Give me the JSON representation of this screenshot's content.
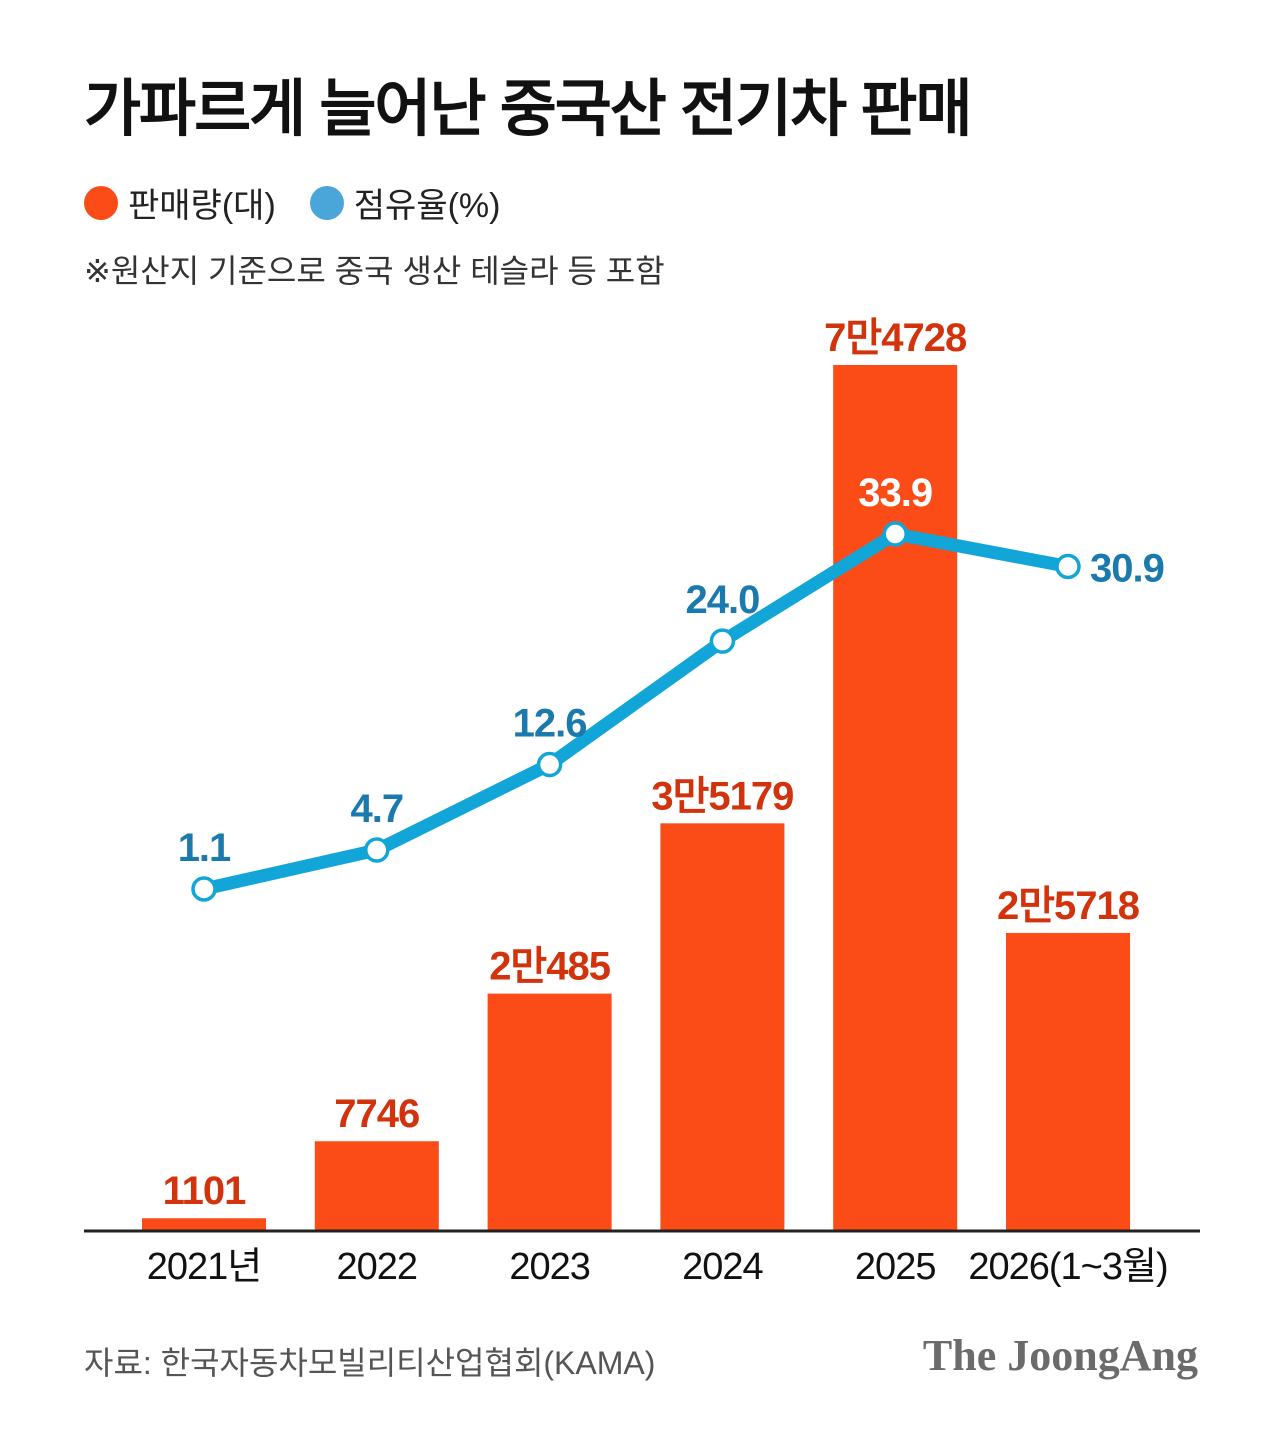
{
  "title": "가파르게 늘어난 중국산 전기차 판매",
  "legend": [
    {
      "label": "판매량(대)",
      "color": "#fb4b17"
    },
    {
      "label": "점유율(%)",
      "color": "#4aa6d8"
    }
  ],
  "note": "※원산지 기준으로 중국 생산 테슬라 등 포함",
  "source": "자료: 한국자동차모빌리티산업협회(KAMA)",
  "brand": "The JoongAng",
  "colors": {
    "bar": "#fb4b17",
    "bar_label": "#d2330d",
    "line": "#12a5d8",
    "line_label": "#1a79ad",
    "axis": "#222222"
  },
  "chart_data": {
    "type": "bar",
    "categories": [
      "2021년",
      "2022",
      "2023",
      "2024",
      "2025",
      "2026(1~3월)"
    ],
    "series": [
      {
        "name": "판매량(대)",
        "type": "bar",
        "values": [
          1101,
          7746,
          20485,
          35179,
          74728,
          25718
        ],
        "labels": [
          "1101",
          "7746",
          "2만485",
          "3만5179",
          "7만4728",
          "2만5718"
        ]
      },
      {
        "name": "점유율(%)",
        "type": "line",
        "values": [
          1.1,
          4.7,
          12.6,
          24.0,
          33.9,
          30.9
        ],
        "labels": [
          "1.1",
          "4.7",
          "12.6",
          "24.0",
          "33.9",
          "30.9"
        ]
      }
    ],
    "grid": false,
    "legend_position": "top-left"
  }
}
